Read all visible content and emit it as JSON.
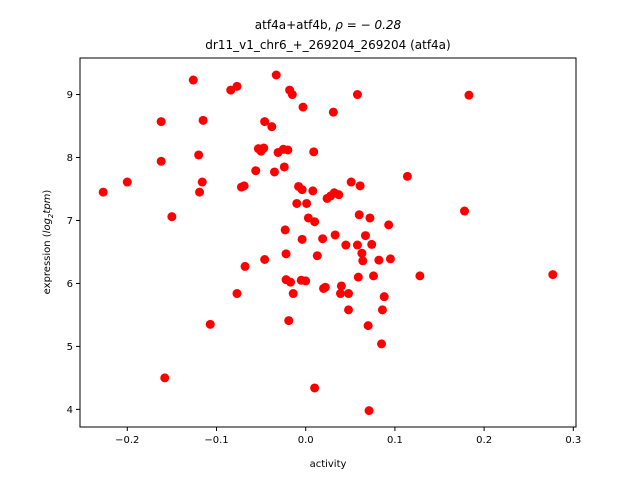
{
  "chart_data": {
    "type": "scatter",
    "title_line1_prefix": "atf4a+atf4b, ",
    "title_line1_rho": "ρ = − 0.28",
    "title_line2": "dr11_v1_chr6_+_269204_269204 (atf4a)",
    "xlabel": "activity",
    "ylabel_prefix": "expression (",
    "ylabel_log": "log",
    "ylabel_sub": "2",
    "ylabel_tpm": "tpm",
    "ylabel_suffix": ")",
    "xlim": [
      -0.253,
      0.303
    ],
    "ylim": [
      3.72,
      9.58
    ],
    "xticks": [
      -0.2,
      -0.1,
      0.0,
      0.1,
      0.2,
      0.3
    ],
    "xtick_labels": [
      "−0.2",
      "−0.1",
      "0.0",
      "0.1",
      "0.2",
      "0.3"
    ],
    "yticks": [
      4,
      5,
      6,
      7,
      8,
      9
    ],
    "ytick_labels": [
      "4",
      "5",
      "6",
      "7",
      "8",
      "9"
    ],
    "marker_color": "#ff0000",
    "points": [
      [
        -0.227,
        7.45
      ],
      [
        -0.2,
        7.61
      ],
      [
        -0.162,
        8.57
      ],
      [
        -0.162,
        7.94
      ],
      [
        -0.158,
        4.5
      ],
      [
        -0.15,
        7.06
      ],
      [
        -0.126,
        9.23
      ],
      [
        -0.12,
        8.04
      ],
      [
        -0.119,
        7.45
      ],
      [
        -0.116,
        7.61
      ],
      [
        -0.115,
        8.59
      ],
      [
        -0.107,
        5.35
      ],
      [
        -0.084,
        9.07
      ],
      [
        -0.077,
        9.13
      ],
      [
        -0.077,
        5.84
      ],
      [
        -0.072,
        7.53
      ],
      [
        -0.069,
        7.55
      ],
      [
        -0.068,
        6.27
      ],
      [
        -0.056,
        7.79
      ],
      [
        -0.053,
        8.14
      ],
      [
        -0.05,
        8.1
      ],
      [
        -0.047,
        8.15
      ],
      [
        -0.046,
        6.38
      ],
      [
        -0.046,
        8.57
      ],
      [
        -0.038,
        8.49
      ],
      [
        -0.035,
        7.77
      ],
      [
        -0.033,
        9.31
      ],
      [
        -0.031,
        8.08
      ],
      [
        -0.025,
        8.13
      ],
      [
        -0.024,
        7.85
      ],
      [
        -0.023,
        6.85
      ],
      [
        -0.022,
        6.47
      ],
      [
        -0.022,
        6.06
      ],
      [
        -0.02,
        8.12
      ],
      [
        -0.019,
        5.41
      ],
      [
        -0.018,
        9.07
      ],
      [
        -0.017,
        6.02
      ],
      [
        -0.015,
        9.0
      ],
      [
        -0.014,
        5.84
      ],
      [
        -0.01,
        7.27
      ],
      [
        -0.008,
        7.54
      ],
      [
        -0.005,
        6.05
      ],
      [
        -0.004,
        7.49
      ],
      [
        -0.004,
        6.7
      ],
      [
        -0.003,
        8.8
      ],
      [
        0.0,
        6.04
      ],
      [
        0.001,
        7.27
      ],
      [
        0.003,
        7.04
      ],
      [
        0.008,
        7.47
      ],
      [
        0.009,
        8.09
      ],
      [
        0.01,
        4.34
      ],
      [
        0.01,
        6.98
      ],
      [
        0.013,
        6.44
      ],
      [
        0.019,
        6.71
      ],
      [
        0.02,
        5.92
      ],
      [
        0.022,
        5.94
      ],
      [
        0.024,
        7.35
      ],
      [
        0.028,
        7.39
      ],
      [
        0.031,
        8.72
      ],
      [
        0.032,
        7.44
      ],
      [
        0.033,
        6.77
      ],
      [
        0.037,
        7.41
      ],
      [
        0.039,
        5.84
      ],
      [
        0.04,
        5.96
      ],
      [
        0.045,
        6.61
      ],
      [
        0.048,
        5.58
      ],
      [
        0.048,
        5.84
      ],
      [
        0.051,
        7.61
      ],
      [
        0.058,
        9.0
      ],
      [
        0.058,
        6.61
      ],
      [
        0.059,
        6.1
      ],
      [
        0.06,
        7.09
      ],
      [
        0.061,
        7.55
      ],
      [
        0.063,
        6.48
      ],
      [
        0.064,
        6.36
      ],
      [
        0.067,
        6.76
      ],
      [
        0.07,
        5.33
      ],
      [
        0.072,
        7.04
      ],
      [
        0.074,
        6.62
      ],
      [
        0.076,
        6.12
      ],
      [
        0.082,
        6.37
      ],
      [
        0.085,
        5.04
      ],
      [
        0.086,
        5.58
      ],
      [
        0.088,
        5.79
      ],
      [
        0.093,
        6.93
      ],
      [
        0.095,
        6.39
      ],
      [
        0.071,
        3.98
      ],
      [
        0.114,
        7.7
      ],
      [
        0.128,
        6.12
      ],
      [
        0.178,
        7.15
      ],
      [
        0.183,
        8.99
      ],
      [
        0.277,
        6.14
      ]
    ]
  }
}
